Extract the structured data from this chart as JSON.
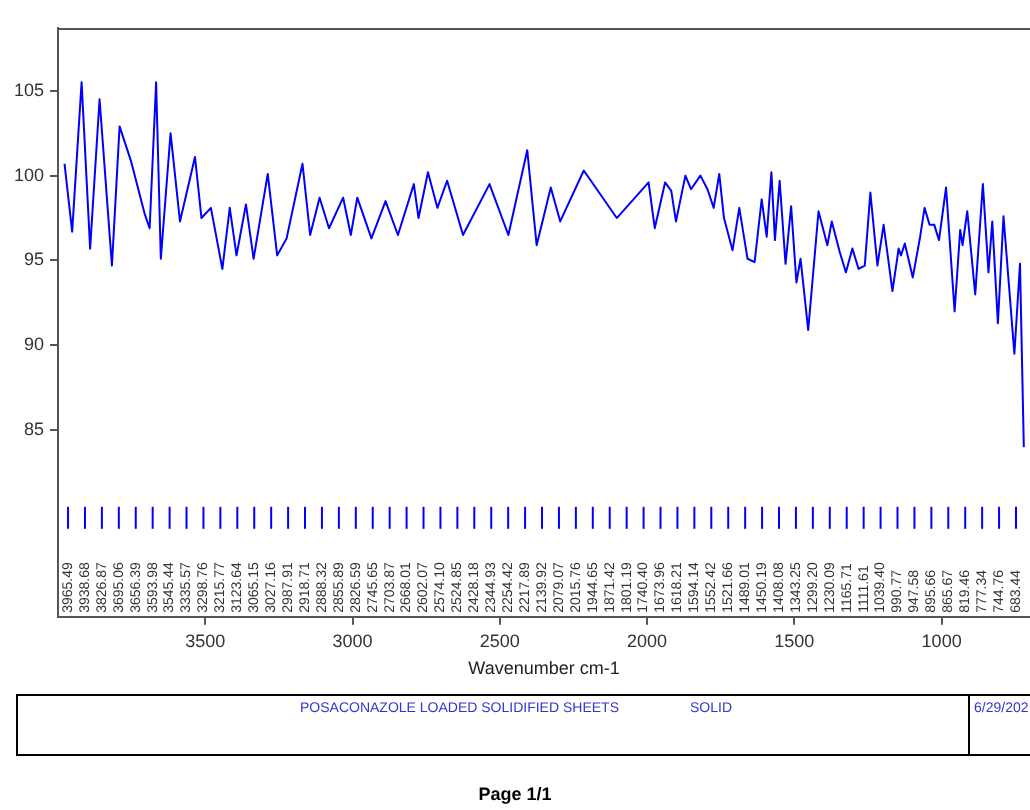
{
  "chart_data": {
    "type": "line",
    "xlabel": "Wavenumber cm-1",
    "xlim": [
      4000,
      700
    ],
    "xticks": [
      3500,
      3000,
      2500,
      2000,
      1500,
      1000
    ],
    "ylim": [
      74,
      108.7
    ],
    "yticks": [
      85,
      90,
      95,
      100,
      105
    ],
    "grid": false,
    "legend": false,
    "marker": "none",
    "line_style": "solid",
    "series": [
      {
        "color": "#0000ff",
        "x": [
          3978,
          3952,
          3920,
          3891,
          3859,
          3817,
          3791,
          3753,
          3705,
          3689,
          3667,
          3651,
          3618,
          3586,
          3535,
          3513,
          3481,
          3442,
          3417,
          3394,
          3362,
          3336,
          3288,
          3256,
          3224,
          3170,
          3144,
          3112,
          3080,
          3032,
          3006,
          2984,
          2936,
          2888,
          2846,
          2792,
          2776,
          2744,
          2712,
          2679,
          2625,
          2535,
          2471,
          2407,
          2375,
          2327,
          2295,
          2215,
          2103,
          1995,
          1974,
          1939,
          1918,
          1902,
          1870,
          1851,
          1819,
          1795,
          1774,
          1755,
          1739,
          1710,
          1687,
          1659,
          1635,
          1611,
          1594,
          1578,
          1566,
          1550,
          1530,
          1511,
          1493,
          1479,
          1453,
          1418,
          1388,
          1373,
          1346,
          1325,
          1303,
          1282,
          1261,
          1242,
          1218,
          1197,
          1167,
          1146,
          1138,
          1125,
          1098,
          1073,
          1058,
          1041,
          1025,
          1009,
          985,
          956,
          937,
          929,
          913,
          886,
          860,
          841,
          828,
          809,
          790,
          753,
          734,
          721
        ],
        "values": [
          100.7,
          96.7,
          105.5,
          95.7,
          104.5,
          94.7,
          102.9,
          100.9,
          97.7,
          96.9,
          105.5,
          95.1,
          102.5,
          97.3,
          101.1,
          97.5,
          98.1,
          94.5,
          98.1,
          95.3,
          98.3,
          95.1,
          100.1,
          95.3,
          96.3,
          100.7,
          96.5,
          98.7,
          96.9,
          98.7,
          96.5,
          98.7,
          96.3,
          98.5,
          96.5,
          99.5,
          97.5,
          100.2,
          98.1,
          99.7,
          96.5,
          99.5,
          96.5,
          101.5,
          95.9,
          99.3,
          97.3,
          100.3,
          97.5,
          99.6,
          96.9,
          99.6,
          99.1,
          97.3,
          100.0,
          99.2,
          100.0,
          99.2,
          98.1,
          100.1,
          97.5,
          95.6,
          98.1,
          95.1,
          94.9,
          98.6,
          96.4,
          100.2,
          96.2,
          99.7,
          94.8,
          98.2,
          93.7,
          95.1,
          90.9,
          97.9,
          95.9,
          97.3,
          95.5,
          94.3,
          95.7,
          94.5,
          94.7,
          99.0,
          94.7,
          97.1,
          93.2,
          95.7,
          95.3,
          96.0,
          94.0,
          96.4,
          98.1,
          97.1,
          97.1,
          96.2,
          99.3,
          92.0,
          96.8,
          95.9,
          97.9,
          93.0,
          99.5,
          94.3,
          97.3,
          91.3,
          97.6,
          89.5,
          94.8,
          84.0
        ]
      }
    ],
    "annotations": [
      "3965.49",
      "3938.68",
      "3826.87",
      "3695.06",
      "3656.39",
      "3593.98",
      "3545.44",
      "3335.57",
      "3298.76",
      "3215.77",
      "3123.64",
      "3065.15",
      "3027.16",
      "2987.91",
      "2918.71",
      "2888.32",
      "2855.89",
      "2826.59",
      "2745.65",
      "2703.87",
      "2668.01",
      "2602.07",
      "2574.10",
      "2524.85",
      "2428.18",
      "2344.93",
      "2254.42",
      "2217.89",
      "2139.92",
      "2079.07",
      "2015.76",
      "1944.65",
      "1871.42",
      "1801.19",
      "1740.40",
      "1673.96",
      "1618.21",
      "1594.14",
      "1552.42",
      "1521.66",
      "1489.01",
      "1450.19",
      "1408.08",
      "1343.25",
      "1299.20",
      "1230.09",
      "1165.71",
      "1111.61",
      "1039.40",
      "990.77",
      "947.58",
      "895.66",
      "865.67",
      "819.46",
      "777.34",
      "744.76",
      "683.44",
      "POSACONAZOLE LOADED SOLIDIFIED SHEETS",
      "SOLID",
      "6/29/202",
      "Page 1/1"
    ]
  }
}
